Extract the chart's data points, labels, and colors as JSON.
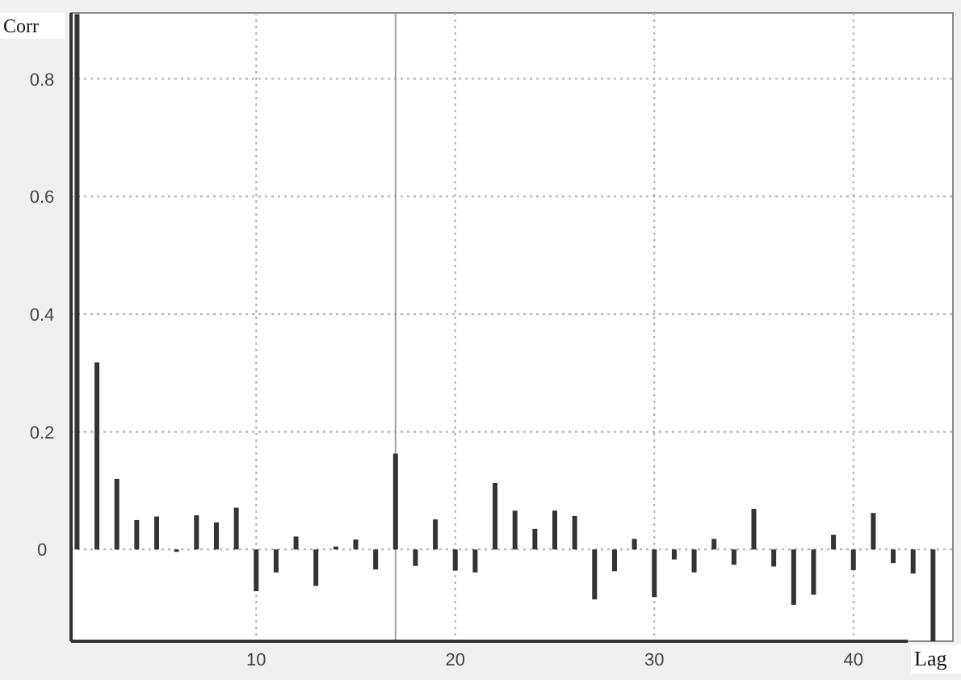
{
  "chart_data": {
    "type": "bar",
    "xlabel": "Lag",
    "ylabel": "Corr",
    "color": "#333333",
    "x": [
      1,
      2,
      3,
      4,
      5,
      6,
      7,
      8,
      9,
      10,
      11,
      12,
      13,
      14,
      15,
      16,
      17,
      18,
      19,
      20,
      21,
      22,
      23,
      24,
      25,
      26,
      27,
      28,
      29,
      30,
      31,
      32,
      33,
      34,
      35,
      36,
      37,
      38,
      39,
      40,
      41,
      42,
      43,
      44
    ],
    "values": [
      0.91,
      0.318,
      0.12,
      0.05,
      0.056,
      -0.004,
      0.058,
      0.046,
      0.071,
      -0.071,
      -0.039,
      0.022,
      -0.062,
      0.005,
      0.017,
      -0.034,
      0.163,
      -0.028,
      0.051,
      -0.036,
      -0.039,
      0.113,
      0.066,
      0.035,
      0.066,
      0.057,
      -0.085,
      -0.037,
      0.018,
      -0.081,
      -0.017,
      -0.039,
      0.018,
      -0.026,
      0.069,
      -0.029,
      -0.094,
      -0.077,
      0.025,
      -0.035,
      0.062,
      -0.023,
      -0.041,
      -0.156
    ],
    "xlim": [
      0.7,
      45
    ],
    "xticks": [
      10,
      20,
      30,
      40
    ],
    "ylim": [
      -0.156,
      0.912
    ],
    "yticks": [
      0,
      0.2,
      0.4,
      0.6,
      0.8
    ],
    "ref_lines": [
      {
        "axis": "x",
        "value": 17,
        "color": "#a0a0a0"
      }
    ],
    "grid": true
  }
}
